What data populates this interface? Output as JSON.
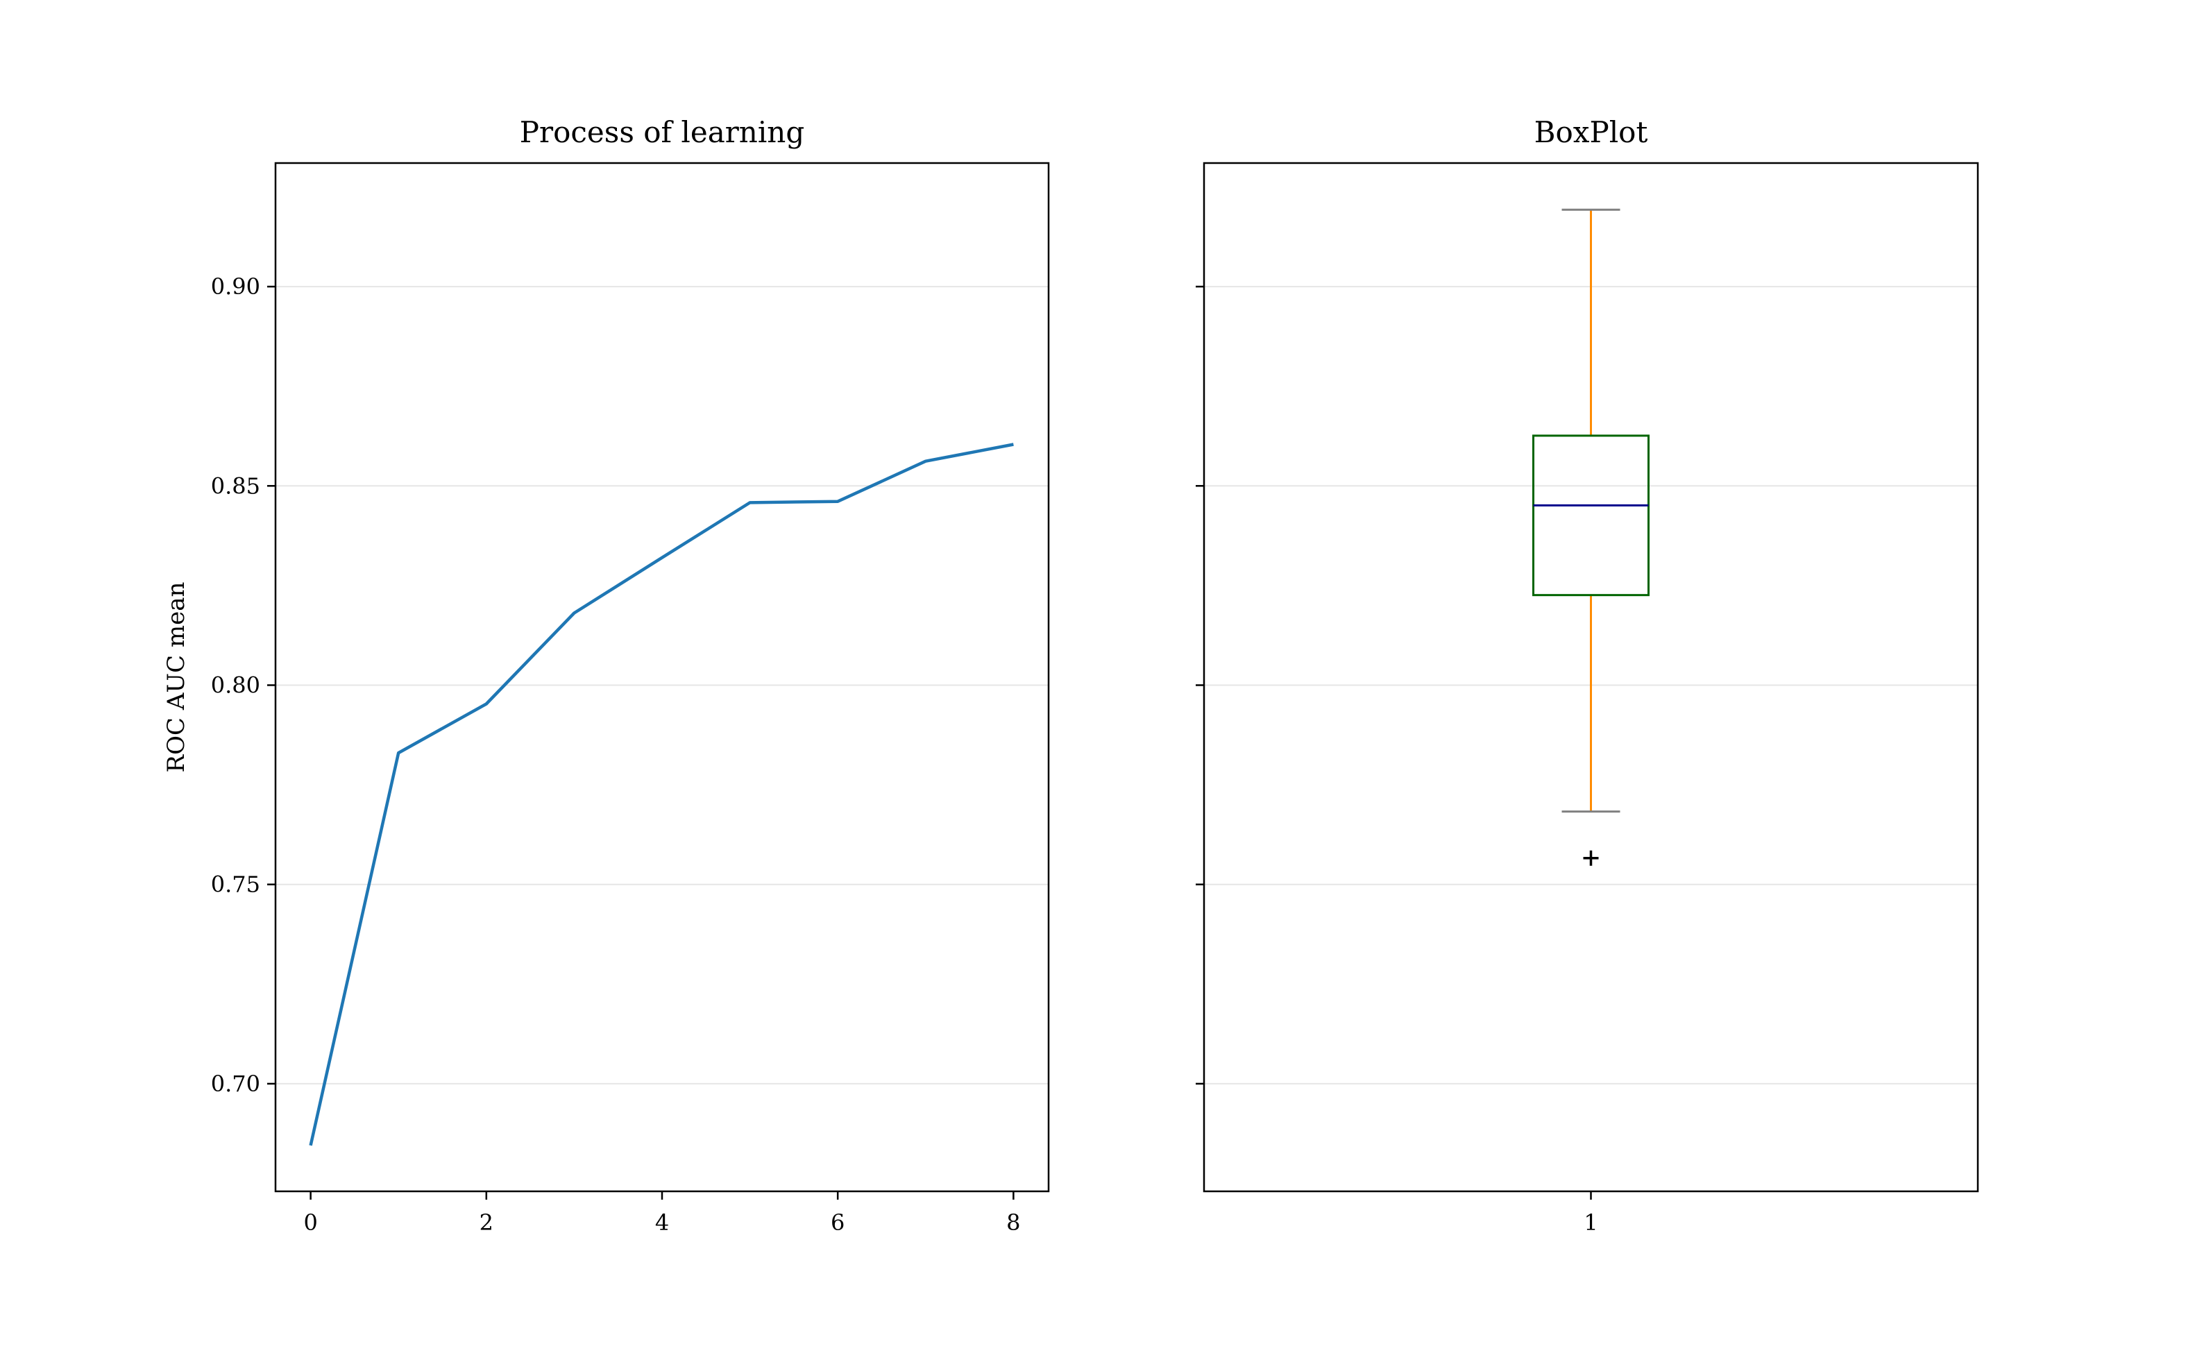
{
  "chart_data": [
    {
      "type": "line",
      "title": "Process of learning",
      "xlabel": "",
      "ylabel": "ROC AUC mean",
      "x": [
        0,
        1,
        2,
        3,
        4,
        5,
        6,
        7,
        8
      ],
      "series": [
        {
          "values": [
            0.6845,
            0.783,
            0.7953,
            0.8181,
            0.832,
            0.8458,
            0.8461,
            0.8562,
            0.8604
          ]
        }
      ],
      "xticks": [
        0,
        2,
        4,
        6,
        8
      ],
      "xtick_labels": [
        "0",
        "2",
        "4",
        "6",
        "8"
      ],
      "yticks": [
        0.7,
        0.75,
        0.8,
        0.85,
        0.9
      ],
      "ytick_labels": [
        "0.70",
        "0.75",
        "0.80",
        "0.85",
        "0.90"
      ],
      "xlim": [
        -0.4,
        8.4
      ],
      "ylim": [
        0.673,
        0.931
      ],
      "grid": "horizontal",
      "line_color": "#1f77b4"
    },
    {
      "type": "box",
      "title": "BoxPlot",
      "categories": [
        "1"
      ],
      "box": {
        "whisker_low": 0.7683,
        "q1": 0.8226,
        "median": 0.8451,
        "q3": 0.8626,
        "whisker_high": 0.9193,
        "outliers": [
          0.7566
        ]
      },
      "ylim": [
        0.673,
        0.931
      ],
      "yticks": [
        0.7,
        0.75,
        0.8,
        0.85,
        0.9
      ],
      "grid": "horizontal",
      "shared_y": true,
      "colors": {
        "box": "#006400",
        "median": "#00008b",
        "whisker": "#ff8c00",
        "cap": "#808080",
        "outlier": "#000000"
      }
    }
  ]
}
